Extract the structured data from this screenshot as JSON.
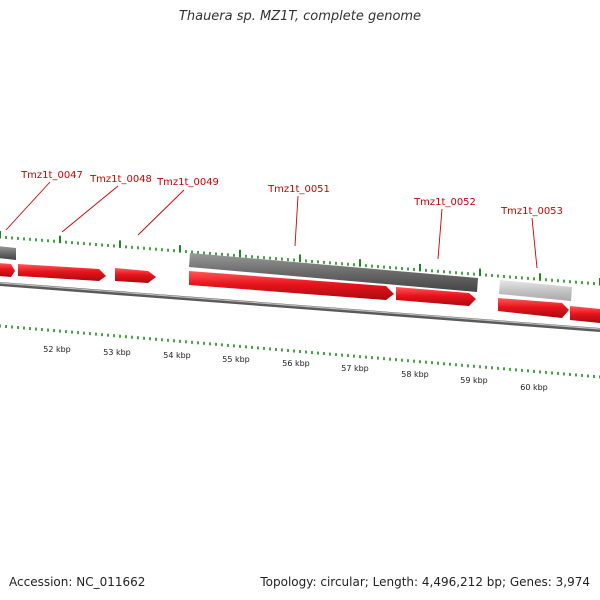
{
  "title": "Thauera sp. MZ1T, complete genome",
  "accession": "Accession: NC_011662",
  "summary": "Topology: circular; Length: 4,496,212 bp; Genes: 3,974",
  "colors": {
    "cds": "#e8141c",
    "gene_dark": "#6e6e6e",
    "gene_light": "#c4c4c4",
    "backbone": "#8a8a8a",
    "ticks": "#1a8a1a",
    "label": "#cc0000"
  },
  "scale_labels": [
    "52 kbp",
    "53 kbp",
    "54 kbp",
    "55 kbp",
    "56 kbp",
    "57 kbp",
    "58 kbp",
    "59 kbp",
    "60 kbp"
  ],
  "gene_labels": [
    "Tmz1t_0047",
    "Tmz1t_0048",
    "Tmz1t_0049",
    "Tmz1t_0051",
    "Tmz1t_0052",
    "Tmz1t_0053"
  ]
}
